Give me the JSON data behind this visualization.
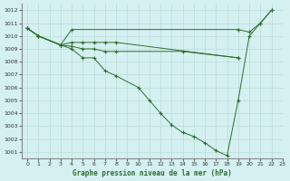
{
  "title": "Graphe pression niveau de la mer (hPa)",
  "bg_color": "#d4f0f0",
  "grid_color": "#b8ddd8",
  "line_color": "#2d6e2d",
  "xlim": [
    -0.5,
    23
  ],
  "ylim": [
    1000.5,
    1012.5
  ],
  "ytick_min": 1001,
  "ytick_max": 1012,
  "xticks": [
    0,
    1,
    2,
    3,
    4,
    5,
    6,
    7,
    8,
    9,
    10,
    11,
    12,
    13,
    14,
    15,
    16,
    17,
    18,
    19,
    20,
    21,
    22,
    23
  ],
  "series": {
    "line1_x": [
      0,
      1,
      3,
      4,
      5,
      6,
      7,
      8,
      10,
      11,
      12,
      13,
      14,
      15,
      16,
      17,
      18,
      19,
      20,
      21,
      22
    ],
    "line1_y": [
      1010.6,
      1010.0,
      1009.3,
      1009.0,
      1008.3,
      1008.3,
      1007.3,
      1006.9,
      1006.0,
      1005.0,
      1004.0,
      1003.1,
      1002.5,
      1002.2,
      1001.7,
      1001.1,
      1000.7,
      1005.0,
      1010.0,
      1011.0,
      1012.0
    ],
    "line2_x": [
      0,
      1,
      3,
      4,
      5,
      6,
      7,
      8,
      19
    ],
    "line2_y": [
      1010.6,
      1010.0,
      1009.3,
      1009.5,
      1009.5,
      1009.5,
      1009.5,
      1009.5,
      1008.3
    ],
    "line3_x": [
      0,
      1,
      3,
      4,
      5,
      6,
      7,
      8,
      14,
      19
    ],
    "line3_y": [
      1010.6,
      1010.0,
      1009.3,
      1009.2,
      1009.0,
      1009.0,
      1008.8,
      1008.8,
      1008.8,
      1008.3
    ],
    "line4_x": [
      0,
      1,
      3,
      4,
      19,
      20,
      21,
      22
    ],
    "line4_y": [
      1010.6,
      1010.0,
      1009.3,
      1010.5,
      1010.5,
      1010.3,
      1011.0,
      1012.0
    ]
  }
}
